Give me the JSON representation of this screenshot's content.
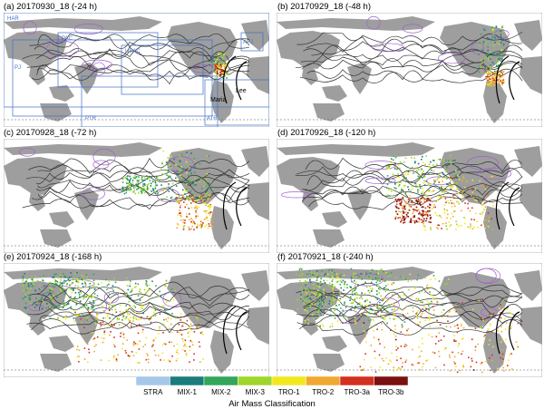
{
  "panels": [
    {
      "label": "(a) 20170930_18 (-24 h)",
      "region_labels": [
        "HAR",
        "PAC",
        "USAC",
        "APJ",
        "PJ",
        "PTR",
        "ATR"
      ],
      "storm_labels": [
        "Maria",
        "Lee"
      ]
    },
    {
      "label": "(b) 20170929_18 (-48 h)"
    },
    {
      "label": "(c) 20170928_18 (-72 h)"
    },
    {
      "label": "(d) 20170926_18 (-120 h)"
    },
    {
      "label": "(e) 20170924_18 (-168 h)"
    },
    {
      "label": "(f) 20170921_18 (-240 h)"
    }
  ],
  "legend": {
    "title": "Air Mass Classification",
    "classes": [
      {
        "name": "STRA",
        "color": "#a6c8e8"
      },
      {
        "name": "MIX-1",
        "color": "#1b7c7c"
      },
      {
        "name": "MIX-2",
        "color": "#33a65a"
      },
      {
        "name": "MIX-3",
        "color": "#9fd62b"
      },
      {
        "name": "TRO-1",
        "color": "#f2e81e"
      },
      {
        "name": "TRO-2",
        "color": "#f0a830"
      },
      {
        "name": "TRO-3a",
        "color": "#d43020"
      },
      {
        "name": "TRO-3b",
        "color": "#7a1010"
      }
    ]
  },
  "colors": {
    "land": "#9e9e9e",
    "contour": "#333333",
    "contour_purple": "#a060d0",
    "region_box": "#3f6fc8",
    "track": "#000000"
  }
}
